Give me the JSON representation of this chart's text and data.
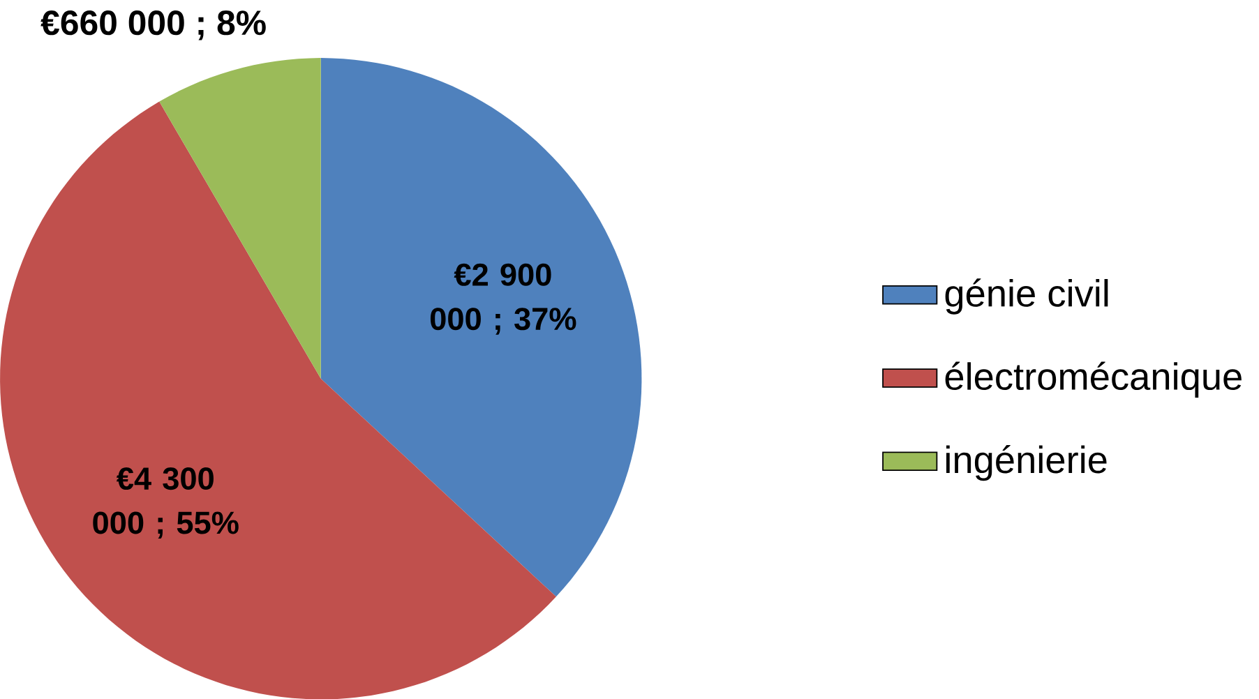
{
  "chart_data": {
    "type": "pie",
    "categories": [
      "génie civil",
      "électromécanique",
      "ingénierie"
    ],
    "values": [
      2900000,
      4300000,
      660000
    ],
    "colors": [
      "#4f81bd",
      "#c0504d",
      "#9bbb59"
    ],
    "value_labels": [
      "€2 900 000 ; 37%",
      "€4 300 000 ; 55%",
      "€660 000 ; 8%"
    ],
    "legend": "right"
  }
}
